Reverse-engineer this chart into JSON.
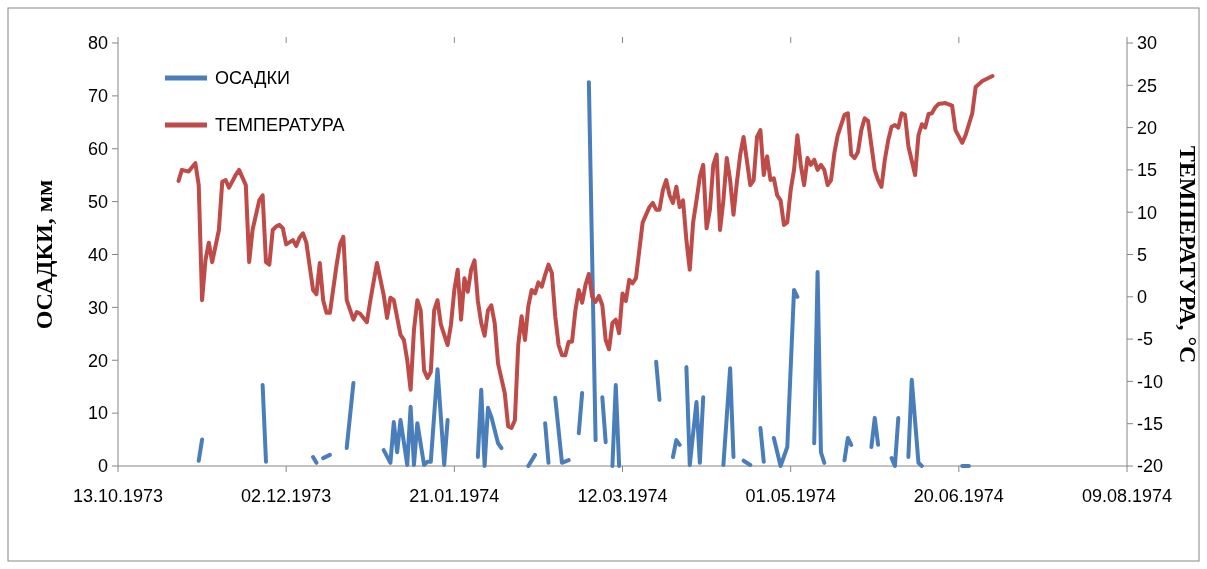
{
  "chart_data": {
    "type": "line",
    "ylabel": "ОСАДКИ, мм",
    "y2label": "ТЕМПЕРАТУРА, °C",
    "legend": "top left",
    "xlim": [
      "1973-10-13",
      "1974-08-09"
    ],
    "xticks": [
      {
        "value": "1973-10-13",
        "label": "13.10.1973"
      },
      {
        "value": "1973-12-02",
        "label": "02.12.1973"
      },
      {
        "value": "1974-01-21",
        "label": "21.01.1974"
      },
      {
        "value": "1974-03-12",
        "label": "12.03.1974"
      },
      {
        "value": "1974-05-01",
        "label": "01.05.1974"
      },
      {
        "value": "1974-06-20",
        "label": "20.06.1974"
      },
      {
        "value": "1974-08-09",
        "label": "09.08.1974"
      }
    ],
    "ylim": [
      0,
      80
    ],
    "yticks": [
      0,
      10,
      20,
      30,
      40,
      50,
      60,
      70,
      80
    ],
    "y2lim": [
      -20,
      30
    ],
    "y2ticks": [
      -20,
      -15,
      -10,
      -5,
      0,
      5,
      10,
      15,
      20,
      25,
      30
    ],
    "series": [
      {
        "name": "ОСАДКИ",
        "color": "#4a7ebb",
        "x": [
          "1973-11-06",
          "1973-11-07",
          "1973-11-12",
          "1973-11-25",
          "1973-11-26",
          "1973-12-02",
          "1973-12-10",
          "1973-12-11",
          "1973-12-12",
          "1973-12-13",
          "1973-12-15",
          "1973-12-17",
          "1973-12-20",
          "1973-12-22",
          "1973-12-25",
          "1973-12-31",
          "1974-01-02",
          "1974-01-03",
          "1974-01-04",
          "1974-01-05",
          "1974-01-07",
          "1974-01-08",
          "1974-01-09",
          "1974-01-10",
          "1974-01-12",
          "1974-01-13",
          "1974-01-14",
          "1974-01-16",
          "1974-01-18",
          "1974-01-19",
          "1974-01-21",
          "1974-01-28",
          "1974-01-29",
          "1974-01-30",
          "1974-01-31",
          "1974-02-01",
          "1974-02-03",
          "1974-02-04",
          "1974-02-07",
          "1974-02-12",
          "1974-02-14",
          "1974-02-15",
          "1974-02-17",
          "1974-02-18",
          "1974-02-19",
          "1974-02-20",
          "1974-02-22",
          "1974-02-24",
          "1974-02-25",
          "1974-02-27",
          "1974-02-28",
          "1974-03-01",
          "1974-03-02",
          "1974-03-04",
          "1974-03-05",
          "1974-03-06",
          "1974-03-07",
          "1974-03-08",
          "1974-03-09",
          "1974-03-10",
          "1974-03-11",
          "1974-03-14",
          "1974-03-22",
          "1974-03-23",
          "1974-03-26",
          "1974-03-27",
          "1974-03-28",
          "1974-03-29",
          "1974-03-30",
          "1974-03-31",
          "1974-04-01",
          "1974-04-03",
          "1974-04-04",
          "1974-04-05",
          "1974-04-07",
          "1974-04-11",
          "1974-04-13",
          "1974-04-14",
          "1974-04-15",
          "1974-04-17",
          "1974-04-19",
          "1974-04-20",
          "1974-04-22",
          "1974-04-23",
          "1974-04-24",
          "1974-04-26",
          "1974-04-28",
          "1974-04-30",
          "1974-05-02",
          "1974-05-03",
          "1974-05-04",
          "1974-05-08",
          "1974-05-09",
          "1974-05-10",
          "1974-05-11",
          "1974-05-13",
          "1974-05-17",
          "1974-05-18",
          "1974-05-19",
          "1974-05-21",
          "1974-05-25",
          "1974-05-26",
          "1974-05-27",
          "1974-05-29",
          "1974-05-31",
          "1974-06-01",
          "1974-06-02",
          "1974-06-03",
          "1974-06-05",
          "1974-06-06",
          "1974-06-08",
          "1974-06-09",
          "1974-06-15",
          "1974-06-21",
          "1974-06-23"
        ],
        "values": [
          1,
          5,
          null,
          15.3,
          0.8,
          null,
          1.7,
          0.6,
          null,
          1.5,
          2.1,
          null,
          3.4,
          15.7,
          null,
          3,
          0.6,
          8.3,
          2.6,
          8.7,
          0.2,
          11.2,
          0.2,
          8.1,
          0.2,
          0.8,
          0.8,
          18.3,
          0.2,
          8.7,
          null,
          1.7,
          14.4,
          0,
          11,
          9.3,
          4.3,
          3.4,
          null,
          0,
          2.1,
          null,
          8.1,
          0.6,
          null,
          12.9,
          0.6,
          1.1,
          null,
          6.2,
          13.8,
          null,
          72.6,
          4.9,
          null,
          13,
          4.5,
          null,
          0,
          15.3,
          0,
          null,
          19.7,
          12.5,
          null,
          1.7,
          4.9,
          4,
          null,
          18.7,
          0.2,
          12.1,
          0.6,
          13,
          null,
          0.2,
          18.5,
          1.7,
          null,
          1,
          0.2,
          null,
          7.2,
          0.8,
          null,
          5.3,
          0,
          3.6,
          33.3,
          32,
          null,
          4.3,
          36.7,
          2.6,
          0.6,
          null,
          1.1,
          5.3,
          4,
          null,
          3.6,
          9.1,
          4,
          null,
          1.5,
          0,
          9.1,
          null,
          1.7,
          16.3,
          0.6,
          0,
          null,
          0,
          0
        ]
      },
      {
        "name": "ТЕМПЕРАТУРА",
        "color": "#be4b48",
        "axis": "y2",
        "x": [
          "1973-10-31",
          "1973-11-01",
          "1973-11-03",
          "1973-11-04",
          "1973-11-05",
          "1973-11-06",
          "1973-11-07",
          "1973-11-08",
          "1973-11-09",
          "1973-11-10",
          "1973-11-12",
          "1973-11-13",
          "1973-11-14",
          "1973-11-15",
          "1973-11-17",
          "1973-11-18",
          "1973-11-20",
          "1973-11-21",
          "1973-11-22",
          "1973-11-24",
          "1973-11-25",
          "1973-11-26",
          "1973-11-27",
          "1973-11-28",
          "1973-11-29",
          "1973-11-30",
          "1973-12-01",
          "1973-12-02",
          "1973-12-04",
          "1973-12-05",
          "1973-12-06",
          "1973-12-07",
          "1973-12-08",
          "1973-12-10",
          "1973-12-11",
          "1973-12-12",
          "1973-12-13",
          "1973-12-14",
          "1973-12-15",
          "1973-12-17",
          "1973-12-18",
          "1973-12-19",
          "1973-12-20",
          "1973-12-22",
          "1973-12-23",
          "1973-12-24",
          "1973-12-26",
          "1973-12-27",
          "1973-12-29",
          "1973-12-31",
          "1974-01-01",
          "1974-01-02",
          "1974-01-03",
          "1974-01-05",
          "1974-01-06",
          "1974-01-07",
          "1974-01-08",
          "1974-01-09",
          "1974-01-10",
          "1974-01-11",
          "1974-01-12",
          "1974-01-13",
          "1974-01-14",
          "1974-01-15",
          "1974-01-16",
          "1974-01-17",
          "1974-01-19",
          "1974-01-20",
          "1974-01-21",
          "1974-01-22",
          "1974-01-23",
          "1974-01-24",
          "1974-01-25",
          "1974-01-26",
          "1974-01-27",
          "1974-01-28",
          "1974-01-29",
          "1974-01-30",
          "1974-01-31",
          "1974-02-01",
          "1974-02-02",
          "1974-02-03",
          "1974-02-05",
          "1974-02-06",
          "1974-02-07",
          "1974-02-08",
          "1974-02-09",
          "1974-02-10",
          "1974-02-11",
          "1974-02-12",
          "1974-02-13",
          "1974-02-14",
          "1974-02-15",
          "1974-02-16",
          "1974-02-17",
          "1974-02-18",
          "1974-02-19",
          "1974-02-20",
          "1974-02-21",
          "1974-02-22",
          "1974-02-23",
          "1974-02-24",
          "1974-02-25",
          "1974-02-26",
          "1974-02-27",
          "1974-02-28",
          "1974-03-01",
          "1974-03-02",
          "1974-03-03",
          "1974-03-04",
          "1974-03-05",
          "1974-03-06",
          "1974-03-07",
          "1974-03-08",
          "1974-03-09",
          "1974-03-10",
          "1974-03-11",
          "1974-03-12",
          "1974-03-13",
          "1974-03-14",
          "1974-03-15",
          "1974-03-16",
          "1974-03-17",
          "1974-03-18",
          "1974-03-20",
          "1974-03-21",
          "1974-03-22",
          "1974-03-23",
          "1974-03-24",
          "1974-03-25",
          "1974-03-26",
          "1974-03-27",
          "1974-03-28",
          "1974-03-29",
          "1974-03-30",
          "1974-03-31",
          "1974-04-01",
          "1974-04-02",
          "1974-04-03",
          "1974-04-04",
          "1974-04-05",
          "1974-04-06",
          "1974-04-07",
          "1974-04-08",
          "1974-04-09",
          "1974-04-10",
          "1974-04-11",
          "1974-04-12",
          "1974-04-13",
          "1974-04-14",
          "1974-04-15",
          "1974-04-16",
          "1974-04-17",
          "1974-04-19",
          "1974-04-20",
          "1974-04-21",
          "1974-04-22",
          "1974-04-23",
          "1974-04-24",
          "1974-04-25",
          "1974-04-26",
          "1974-04-27",
          "1974-04-28",
          "1974-04-29",
          "1974-04-30",
          "1974-05-01",
          "1974-05-02",
          "1974-05-03",
          "1974-05-04",
          "1974-05-05",
          "1974-05-06",
          "1974-05-07",
          "1974-05-08",
          "1974-05-09",
          "1974-05-10",
          "1974-05-11",
          "1974-05-12",
          "1974-05-13",
          "1974-05-14",
          "1974-05-15",
          "1974-05-17",
          "1974-05-18",
          "1974-05-19",
          "1974-05-20",
          "1974-05-21",
          "1974-05-22",
          "1974-05-23",
          "1974-05-24",
          "1974-05-25",
          "1974-05-26",
          "1974-05-27",
          "1974-05-28",
          "1974-05-29",
          "1974-05-30",
          "1974-05-31",
          "1974-06-01",
          "1974-06-02",
          "1974-06-03",
          "1974-06-04",
          "1974-06-05",
          "1974-06-07",
          "1974-06-08",
          "1974-06-09",
          "1974-06-10",
          "1974-06-11",
          "1974-06-12",
          "1974-06-13",
          "1974-06-14",
          "1974-06-16",
          "1974-06-18",
          "1974-06-19",
          "1974-06-21",
          "1974-06-22",
          "1974-06-24",
          "1974-06-25",
          "1974-06-27",
          "1974-06-30"
        ],
        "values": [
          13.7,
          15,
          14.8,
          15.3,
          15.8,
          13.2,
          -0.4,
          4.3,
          6.4,
          4.1,
          7.9,
          13.6,
          13.8,
          12.9,
          14.4,
          15,
          13.2,
          4.1,
          7.9,
          11.4,
          12,
          4.1,
          3.8,
          7.9,
          8.3,
          8.5,
          8.1,
          6.2,
          6.7,
          6,
          7,
          7.5,
          6.4,
          0.8,
          0.3,
          4,
          -0.4,
          -1.9,
          -1.9,
          3.8,
          6.2,
          7.1,
          -0.4,
          -2.7,
          -1.8,
          -2,
          -3,
          -0.5,
          4,
          0.2,
          -2.5,
          -0.1,
          -0.4,
          -4.5,
          -5.1,
          -7.5,
          -11,
          -3.9,
          -0.4,
          -1.6,
          -8.7,
          -9.6,
          -8.9,
          -1.6,
          -0.4,
          -3.3,
          -5.7,
          -3.3,
          0.8,
          3.2,
          -2.7,
          2.2,
          0.6,
          3.2,
          4.3,
          -0.5,
          -3.1,
          -4.6,
          -1.6,
          -1,
          -3.1,
          -7.9,
          -11.4,
          -15.3,
          -15.5,
          -14.6,
          -5.7,
          -2.3,
          -5.1,
          -1.1,
          0.8,
          0.4,
          1.7,
          1.2,
          2.6,
          3.8,
          2.8,
          -2.3,
          -5.7,
          -6.9,
          -6.9,
          -5.3,
          -5.3,
          -1.6,
          0.8,
          -0.7,
          1.4,
          2.7,
          0,
          -0.6,
          0.1,
          -1,
          -5.1,
          -6.2,
          -3.1,
          -2.7,
          -4.3,
          0.4,
          -0.5,
          2,
          1.6,
          2.2,
          5.5,
          8.8,
          10.6,
          11.1,
          10.3,
          10.3,
          12.6,
          13.8,
          12,
          11.1,
          13,
          10.6,
          11.4,
          6.7,
          3.2,
          8.8,
          11.4,
          14.2,
          15.6,
          8.1,
          10.3,
          15.6,
          16.8,
          7.9,
          11.4,
          16.4,
          13.8,
          9.7,
          13.5,
          16.8,
          18.9,
          13.2,
          13.8,
          18.9,
          19.7,
          14.4,
          16.6,
          13.8,
          14,
          12,
          11.4,
          8.5,
          8.8,
          12.6,
          15,
          19.1,
          15.6,
          13.2,
          16.4,
          15.6,
          16.2,
          15,
          15.6,
          15,
          13.2,
          13.8,
          17,
          19.1,
          21.5,
          21.7,
          16.8,
          16.4,
          17.1,
          19.7,
          21.1,
          20.8,
          17.9,
          15,
          13.8,
          13,
          16.2,
          18.5,
          20.1,
          20.3,
          20,
          21.7,
          21.5,
          17.8,
          14.4,
          19.1,
          20.4,
          20,
          21.6,
          21.7,
          22.4,
          22.8,
          22.9,
          22.6,
          19.7,
          18.2,
          19.1,
          21.7,
          24.8,
          25.5,
          26.1
        ]
      }
    ]
  }
}
